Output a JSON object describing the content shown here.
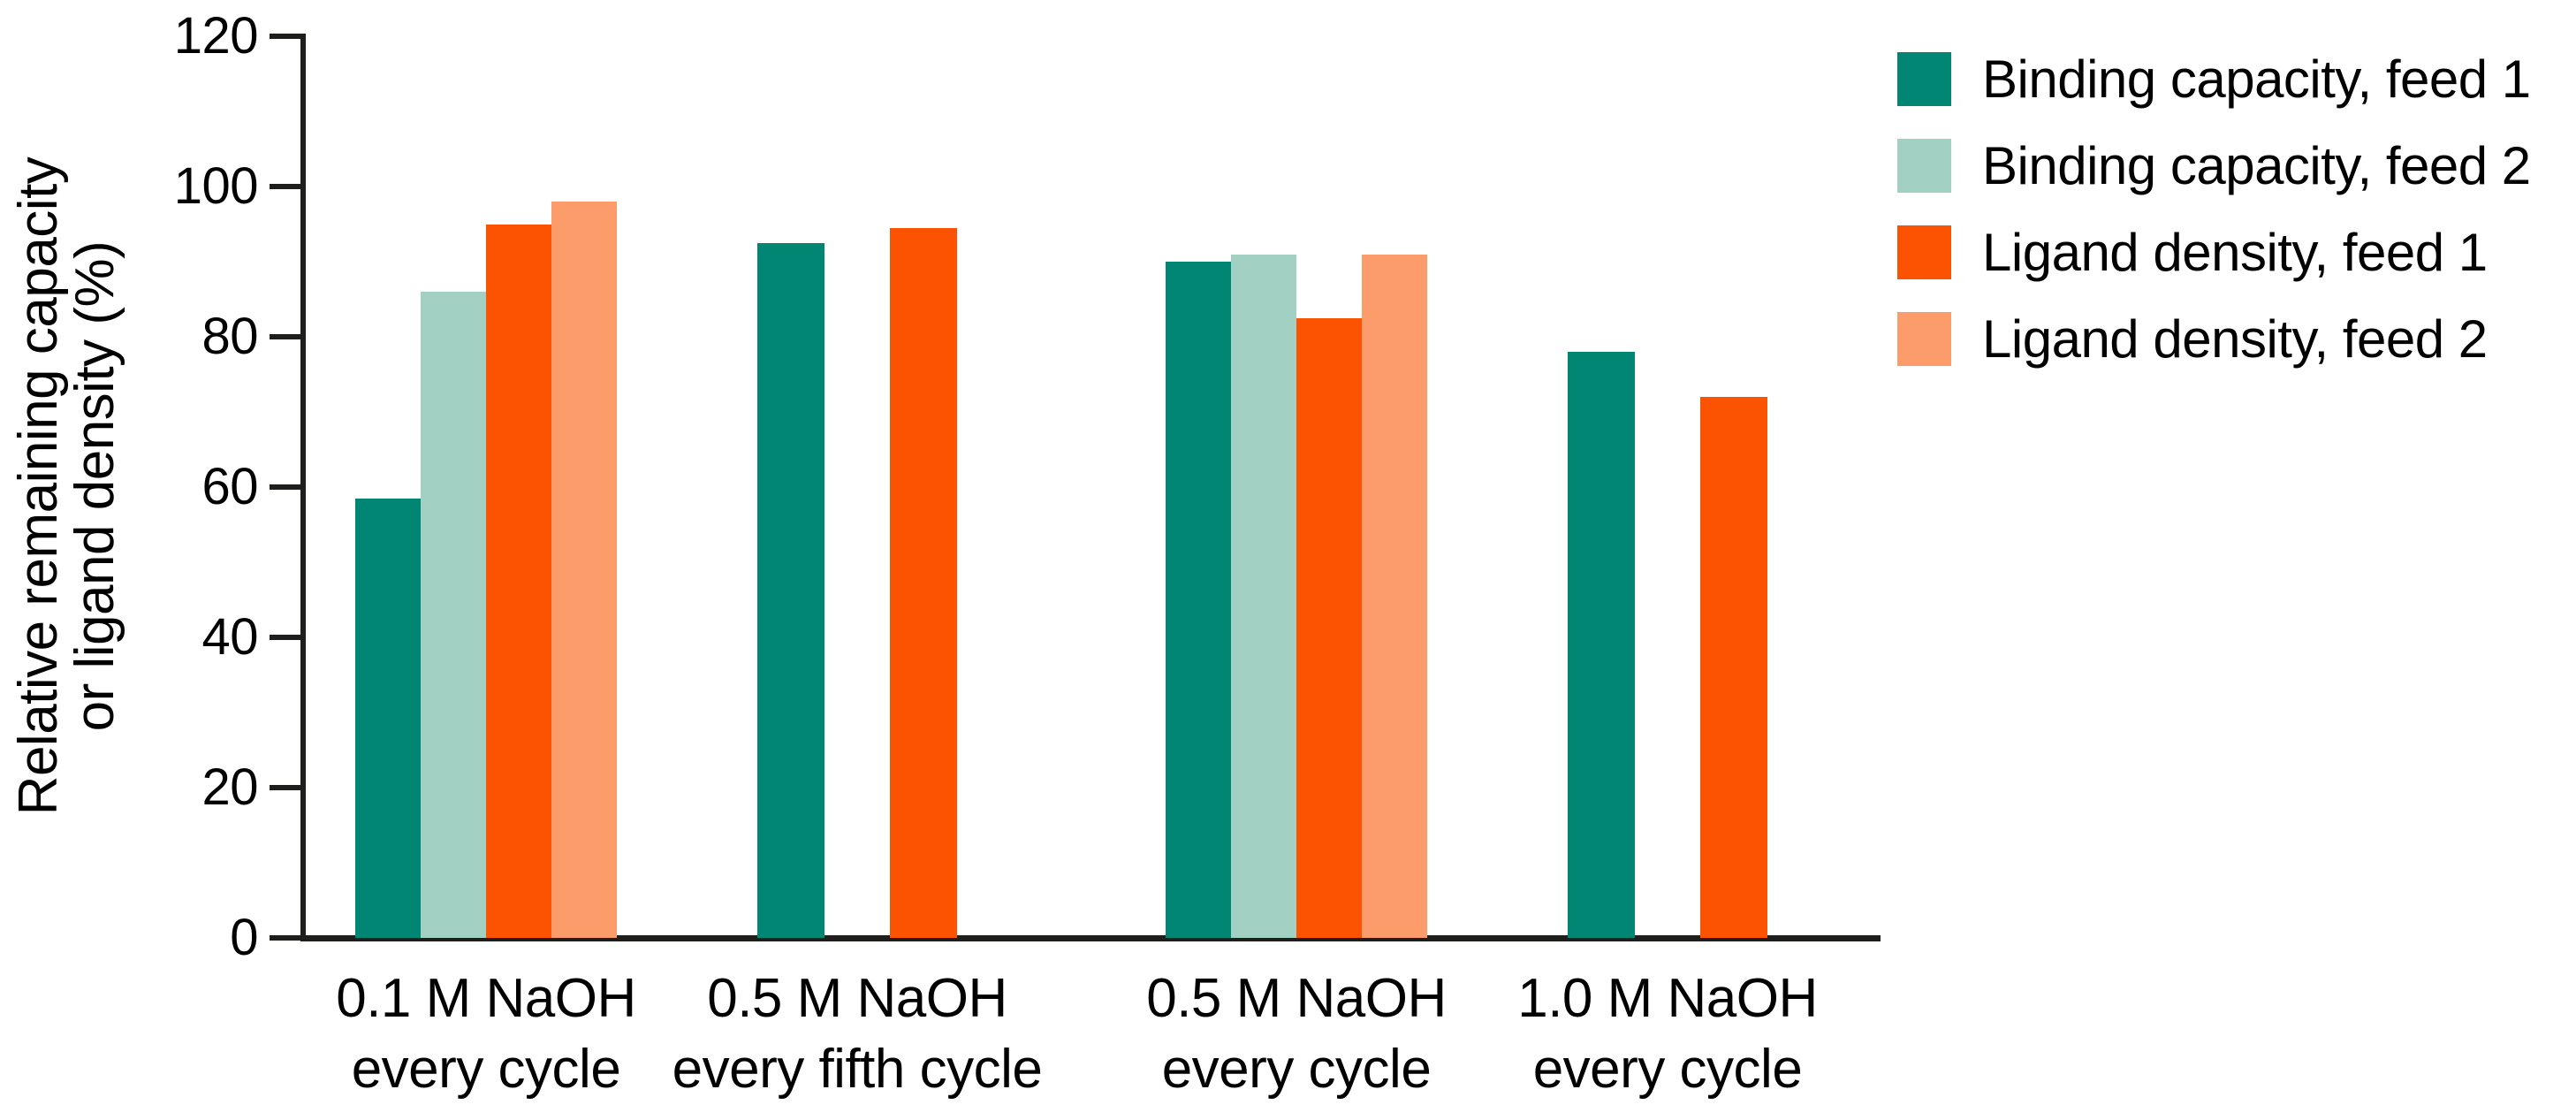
{
  "figure": {
    "background": "#ffffff",
    "axis_color": "#1e1e1c",
    "text_color": "#000000",
    "y_axis": {
      "title_line1": "Relative remaining capacity",
      "title_line2": "or ligand density (%)",
      "min": 0,
      "max": 120,
      "step": 20,
      "ticks": [
        0,
        20,
        40,
        60,
        80,
        100,
        120
      ]
    },
    "x_axis": {
      "categories": [
        {
          "line1": "0.1 M NaOH",
          "line2": "every cycle"
        },
        {
          "line1": "0.5 M NaOH",
          "line2": "every fifth cycle"
        },
        {
          "line1": "0.5 M NaOH",
          "line2": "every cycle"
        },
        {
          "line1": "1.0 M NaOH",
          "line2": "every cycle"
        }
      ]
    },
    "legend": {
      "items": [
        {
          "label": "Binding capacity, feed 1",
          "color": "#008673"
        },
        {
          "label": "Binding capacity, feed 2",
          "color": "#A2D1C4"
        },
        {
          "label": "Ligand density, feed 1",
          "color": "#FB5301"
        },
        {
          "label": "Ligand density, feed 2",
          "color": "#FC9C6A"
        }
      ]
    }
  },
  "chart_data": {
    "type": "bar",
    "title": "",
    "xlabel": "",
    "ylabel": "Relative remaining capacity or ligand density (%)",
    "ylim": [
      0,
      120
    ],
    "ytick_step": 20,
    "grid": false,
    "legend_position": "top-right",
    "categories": [
      "0.1 M NaOH every cycle",
      "0.5 M NaOH every fifth cycle",
      "0.5 M NaOH every cycle",
      "1.0 M NaOH every cycle"
    ],
    "series": [
      {
        "name": "Binding capacity, feed 1",
        "color": "#008673",
        "values": [
          58.5,
          92.5,
          90,
          78
        ]
      },
      {
        "name": "Binding capacity, feed 2",
        "color": "#A2D1C4",
        "values": [
          86,
          null,
          91,
          null
        ]
      },
      {
        "name": "Ligand density, feed 1",
        "color": "#FB5301",
        "values": [
          95,
          94.5,
          82.5,
          72
        ]
      },
      {
        "name": "Ligand density, feed 2",
        "color": "#FC9C6A",
        "values": [
          98,
          null,
          91,
          null
        ]
      }
    ]
  }
}
